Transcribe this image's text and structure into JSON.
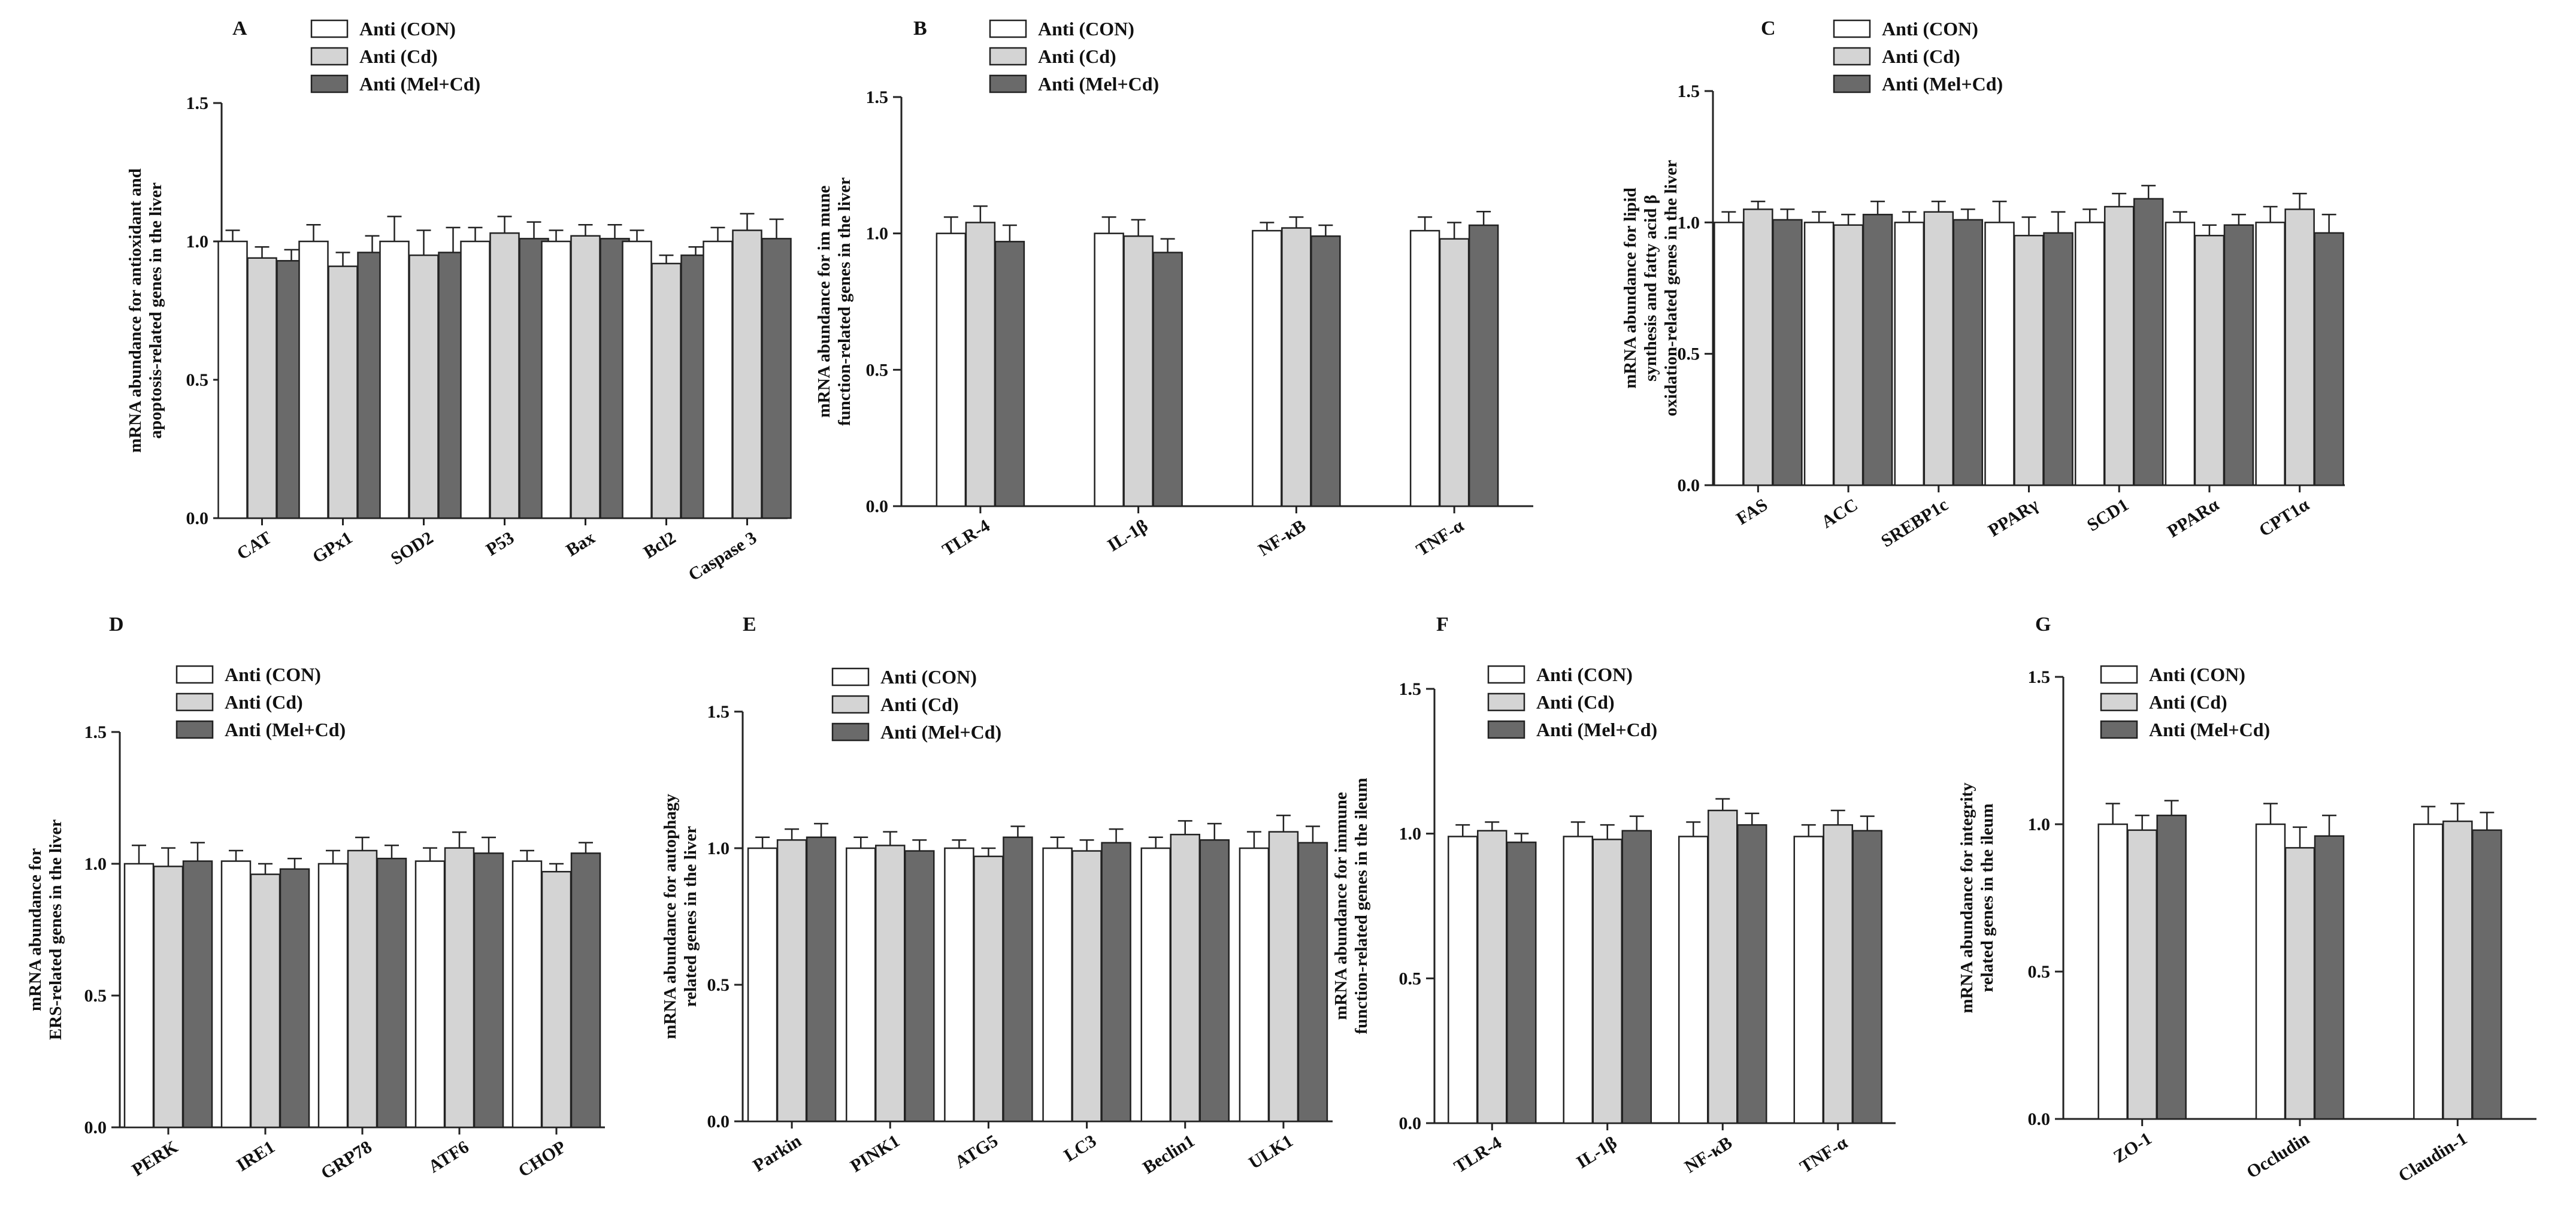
{
  "figure": {
    "legend": [
      {
        "label": "Anti (CON)",
        "color": "#ffffff"
      },
      {
        "label": "Anti (Cd)",
        "color": "#d4d4d4"
      },
      {
        "label": "Anti (Mel+Cd)",
        "color": "#6a6a6a"
      }
    ],
    "ylim": [
      0,
      1.5
    ],
    "yticks": [
      "0.0",
      "0.5",
      "1.0",
      "1.5"
    ]
  },
  "chart_data": [
    {
      "id": "A",
      "type": "bar",
      "title": "A",
      "ylabel": [
        "mRNA abundance for antioxidant and",
        "apoptosis-related genes in the liver"
      ],
      "ylim": [
        0,
        1.5
      ],
      "categories": [
        "CAT",
        "GPx1",
        "SOD2",
        "P53",
        "Bax",
        "Bcl2",
        "Caspase 3"
      ],
      "series": [
        {
          "name": "Anti (CON)",
          "values": [
            1.0,
            1.0,
            1.0,
            1.0,
            1.0,
            1.0,
            1.0
          ],
          "errors": [
            0.04,
            0.06,
            0.09,
            0.05,
            0.04,
            0.04,
            0.05
          ]
        },
        {
          "name": "Anti (Cd)",
          "values": [
            0.94,
            0.91,
            0.95,
            1.03,
            1.02,
            0.92,
            1.04
          ],
          "errors": [
            0.04,
            0.05,
            0.09,
            0.06,
            0.04,
            0.03,
            0.06
          ]
        },
        {
          "name": "Anti (Mel+Cd)",
          "values": [
            0.93,
            0.96,
            0.96,
            1.01,
            1.01,
            0.95,
            1.01
          ],
          "errors": [
            0.04,
            0.06,
            0.09,
            0.06,
            0.05,
            0.03,
            0.07
          ]
        }
      ]
    },
    {
      "id": "B",
      "type": "bar",
      "title": "B",
      "ylabel": [
        "mRNA abundance for im mune",
        "function-related genes in the liver"
      ],
      "ylim": [
        0,
        1.5
      ],
      "categories": [
        "TLR-4",
        "IL-1β",
        "NF-κB",
        "TNF-α"
      ],
      "series": [
        {
          "name": "Anti (CON)",
          "values": [
            1.0,
            1.0,
            1.01,
            1.01
          ],
          "errors": [
            0.06,
            0.06,
            0.03,
            0.05
          ]
        },
        {
          "name": "Anti (Cd)",
          "values": [
            1.04,
            0.99,
            1.02,
            0.98
          ],
          "errors": [
            0.06,
            0.06,
            0.04,
            0.06
          ]
        },
        {
          "name": "Anti (Mel+Cd)",
          "values": [
            0.97,
            0.93,
            0.99,
            1.03
          ],
          "errors": [
            0.06,
            0.05,
            0.04,
            0.05
          ]
        }
      ]
    },
    {
      "id": "C",
      "type": "bar",
      "title": "C",
      "ylabel": [
        "mRNA abundance for lipid",
        "synthesis and fatty acid β",
        "oxidation-related genes in the liver"
      ],
      "ylim": [
        0,
        1.5
      ],
      "categories": [
        "FAS",
        "ACC",
        "SREBP1c",
        "PPARγ",
        "SCD1",
        "PPARα",
        "CPT1α"
      ],
      "series": [
        {
          "name": "Anti (CON)",
          "values": [
            1.0,
            1.0,
            1.0,
            1.0,
            1.0,
            1.0,
            1.0
          ],
          "errors": [
            0.04,
            0.04,
            0.04,
            0.08,
            0.05,
            0.04,
            0.06
          ]
        },
        {
          "name": "Anti (Cd)",
          "values": [
            1.05,
            0.99,
            1.04,
            0.95,
            1.06,
            0.95,
            1.05
          ],
          "errors": [
            0.03,
            0.04,
            0.04,
            0.07,
            0.05,
            0.04,
            0.06
          ]
        },
        {
          "name": "Anti (Mel+Cd)",
          "values": [
            1.01,
            1.03,
            1.01,
            0.96,
            1.09,
            0.99,
            0.96
          ],
          "errors": [
            0.04,
            0.05,
            0.04,
            0.08,
            0.05,
            0.04,
            0.07
          ]
        }
      ]
    },
    {
      "id": "D",
      "type": "bar",
      "title": "D",
      "ylabel": [
        "mRNA abundance for",
        "ERS-related genes in the liver"
      ],
      "ylim": [
        0,
        1.5
      ],
      "categories": [
        "PERK",
        "IRE1",
        "GRP78",
        "ATF6",
        "CHOP"
      ],
      "series": [
        {
          "name": "Anti (CON)",
          "values": [
            1.0,
            1.01,
            1.0,
            1.01,
            1.01
          ],
          "errors": [
            0.07,
            0.04,
            0.05,
            0.05,
            0.04
          ]
        },
        {
          "name": "Anti (Cd)",
          "values": [
            0.99,
            0.96,
            1.05,
            1.06,
            0.97
          ],
          "errors": [
            0.07,
            0.04,
            0.05,
            0.06,
            0.03
          ]
        },
        {
          "name": "Anti (Mel+Cd)",
          "values": [
            1.01,
            0.98,
            1.02,
            1.04,
            1.04
          ],
          "errors": [
            0.07,
            0.04,
            0.05,
            0.06,
            0.04
          ]
        }
      ]
    },
    {
      "id": "E",
      "type": "bar",
      "title": "E",
      "ylabel": [
        "mRNA abundance for autophagy",
        "related genes in the liver"
      ],
      "ylim": [
        0,
        1.5
      ],
      "categories": [
        "Parkin",
        "PINK1",
        "ATG5",
        "LC3",
        "Beclin1",
        "ULK1"
      ],
      "series": [
        {
          "name": "Anti (CON)",
          "values": [
            1.0,
            1.0,
            1.0,
            1.0,
            1.0,
            1.0
          ],
          "errors": [
            0.04,
            0.04,
            0.03,
            0.04,
            0.04,
            0.06
          ]
        },
        {
          "name": "Anti (Cd)",
          "values": [
            1.03,
            1.01,
            0.97,
            0.99,
            1.05,
            1.06
          ],
          "errors": [
            0.04,
            0.05,
            0.03,
            0.04,
            0.05,
            0.06
          ]
        },
        {
          "name": "Anti (Mel+Cd)",
          "values": [
            1.04,
            0.99,
            1.04,
            1.02,
            1.03,
            1.02
          ],
          "errors": [
            0.05,
            0.04,
            0.04,
            0.05,
            0.06,
            0.06
          ]
        }
      ]
    },
    {
      "id": "F",
      "type": "bar",
      "title": "F",
      "ylabel": [
        "mRNA abundance for  immune",
        "function-related genes in the ileum"
      ],
      "ylim": [
        0,
        1.5
      ],
      "categories": [
        "TLR-4",
        "IL-1β",
        "NF-κB",
        "TNF-α"
      ],
      "series": [
        {
          "name": "Anti (CON)",
          "values": [
            0.99,
            0.99,
            0.99,
            0.99
          ],
          "errors": [
            0.04,
            0.05,
            0.05,
            0.04
          ]
        },
        {
          "name": "Anti (Cd)",
          "values": [
            1.01,
            0.98,
            1.08,
            1.03
          ],
          "errors": [
            0.03,
            0.05,
            0.04,
            0.05
          ]
        },
        {
          "name": "Anti (Mel+Cd)",
          "values": [
            0.97,
            1.01,
            1.03,
            1.01
          ],
          "errors": [
            0.03,
            0.05,
            0.04,
            0.05
          ]
        }
      ]
    },
    {
      "id": "G",
      "type": "bar",
      "title": "G",
      "ylabel": [
        "mRNA abundance for integrity",
        "related genes in the ileum"
      ],
      "ylim": [
        0,
        1.5
      ],
      "categories": [
        "ZO-1",
        "Occludin",
        "Claudin-1"
      ],
      "series": [
        {
          "name": "Anti (CON)",
          "values": [
            1.0,
            1.0,
            1.0
          ],
          "errors": [
            0.07,
            0.07,
            0.06
          ]
        },
        {
          "name": "Anti (Cd)",
          "values": [
            0.98,
            0.92,
            1.01
          ],
          "errors": [
            0.05,
            0.07,
            0.06
          ]
        },
        {
          "name": "Anti (Mel+Cd)",
          "values": [
            1.03,
            0.96,
            0.98
          ],
          "errors": [
            0.05,
            0.07,
            0.06
          ]
        }
      ]
    }
  ]
}
